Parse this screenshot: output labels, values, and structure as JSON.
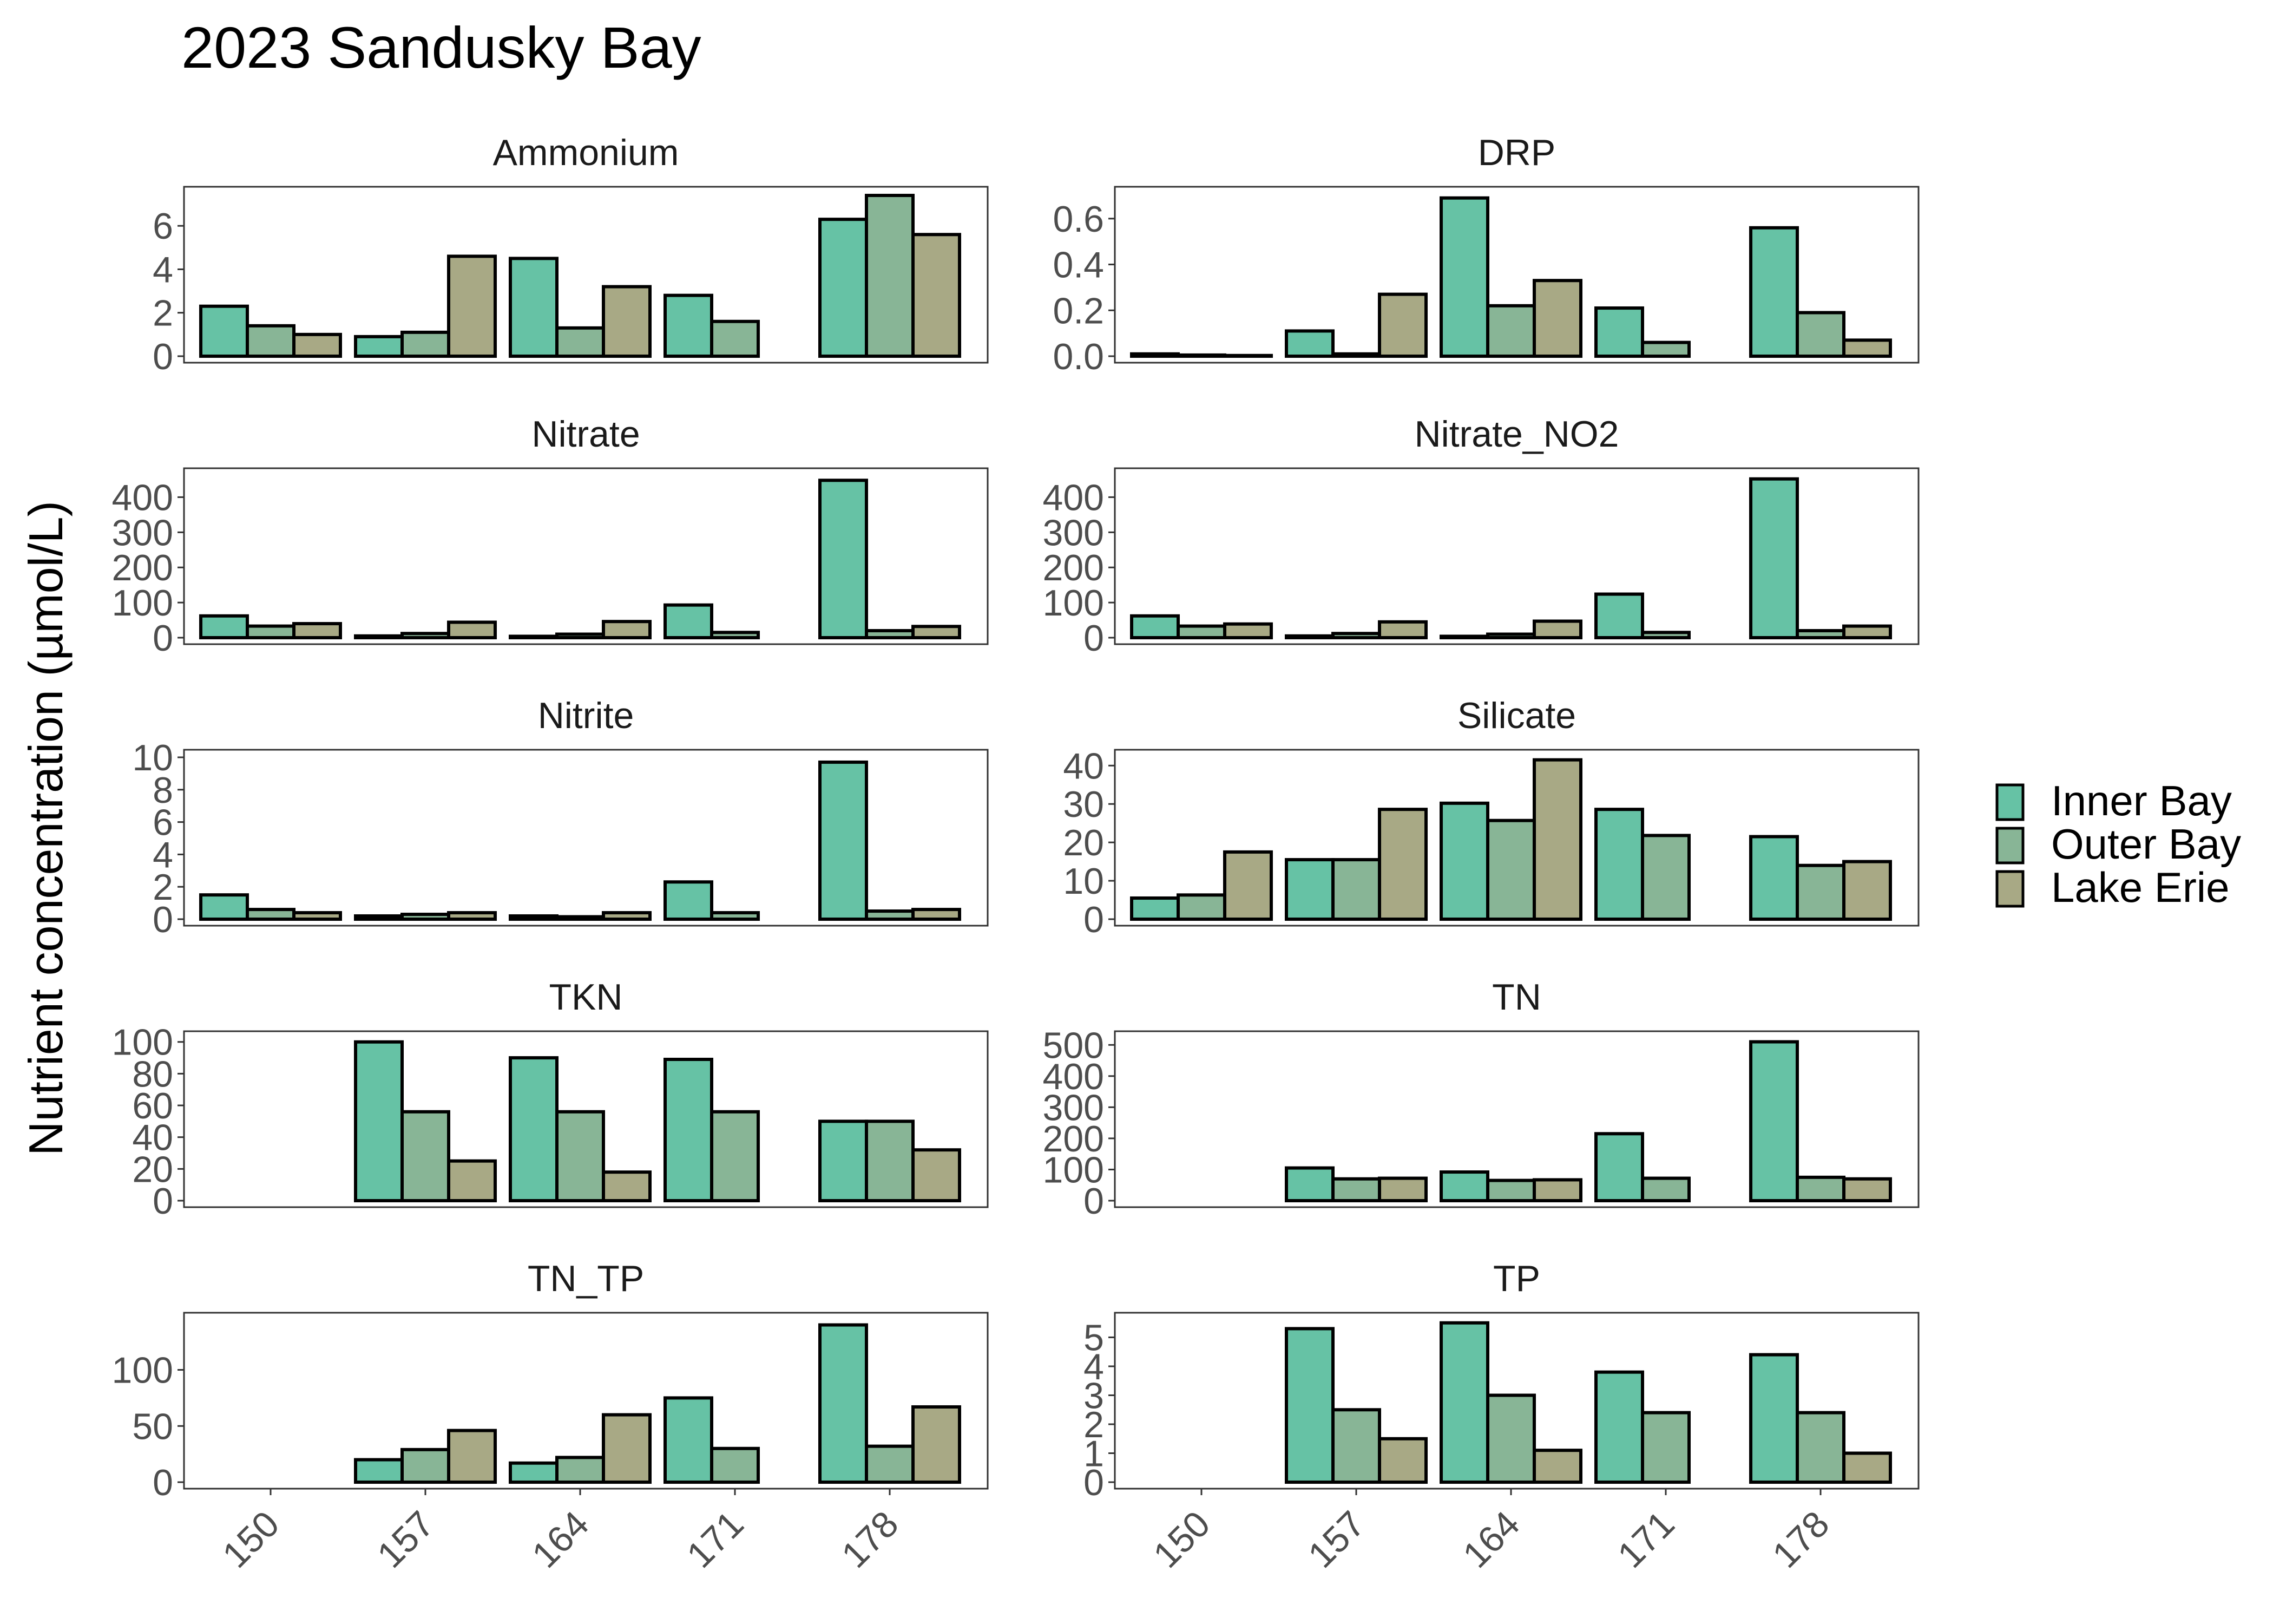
{
  "title": "2023 Sandusky Bay",
  "ylabel": "Nutrient concentration (µmol/L)",
  "legend": [
    {
      "label": "Inner Bay",
      "color": "#66c2a5"
    },
    {
      "label": "Outer Bay",
      "color": "#88b596"
    },
    {
      "label": "Lake Erie",
      "color": "#a8a985"
    }
  ],
  "chart_data": {
    "type": "bar",
    "layout": "faceted 5x2 grid, shared x axis",
    "x": [
      "150",
      "157",
      "164",
      "171",
      "178"
    ],
    "series_names": [
      "Inner Bay",
      "Outer Bay",
      "Lake Erie"
    ],
    "legend_position": "right",
    "grid": false,
    "panels": [
      {
        "title": "Ammonium",
        "ylim": [
          0,
          7.6
        ],
        "yticks": [
          "0",
          "2",
          "4",
          "6"
        ],
        "values": [
          [
            2.3,
            1.4,
            1.0
          ],
          [
            0.9,
            1.1,
            4.6
          ],
          [
            4.5,
            1.3,
            3.2
          ],
          [
            2.8,
            1.6,
            null
          ],
          [
            6.3,
            7.4,
            5.6
          ]
        ]
      },
      {
        "title": "DRP",
        "ylim": [
          0,
          0.72
        ],
        "yticks": [
          "0.0",
          "0.2",
          "0.4",
          "0.6"
        ],
        "values": [
          [
            0.01,
            0.005,
            0.003
          ],
          [
            0.11,
            0.01,
            0.27
          ],
          [
            0.69,
            0.22,
            0.33
          ],
          [
            0.21,
            0.06,
            null
          ],
          [
            0.56,
            0.19,
            0.07
          ]
        ]
      },
      {
        "title": "Nitrate",
        "ylim": [
          0,
          470
        ],
        "yticks": [
          "0",
          "100",
          "200",
          "300",
          "400"
        ],
        "values": [
          [
            62,
            33,
            40
          ],
          [
            5,
            12,
            44
          ],
          [
            4,
            10,
            46
          ],
          [
            93,
            15,
            null
          ],
          [
            448,
            20,
            32
          ]
        ]
      },
      {
        "title": "Nitrate_NO2",
        "ylim": [
          0,
          470
        ],
        "yticks": [
          "0",
          "100",
          "200",
          "300",
          "400"
        ],
        "values": [
          [
            62,
            33,
            39
          ],
          [
            5,
            12,
            45
          ],
          [
            4,
            10,
            47
          ],
          [
            124,
            15,
            null
          ],
          [
            452,
            20,
            33
          ]
        ]
      },
      {
        "title": "Nitrite",
        "ylim": [
          0,
          10.2
        ],
        "yticks": [
          "0",
          "2",
          "4",
          "6",
          "8",
          "10"
        ],
        "values": [
          [
            1.5,
            0.6,
            0.4
          ],
          [
            0.2,
            0.3,
            0.4
          ],
          [
            0.2,
            0.15,
            0.4
          ],
          [
            2.3,
            0.4,
            null
          ],
          [
            9.7,
            0.5,
            0.6
          ]
        ]
      },
      {
        "title": "Silicate",
        "ylim": [
          0,
          43
        ],
        "yticks": [
          "0",
          "10",
          "20",
          "30",
          "40"
        ],
        "values": [
          [
            5.5,
            6.3,
            17.5
          ],
          [
            15.5,
            15.5,
            28.6
          ],
          [
            30.2,
            25.7,
            41.5
          ],
          [
            28.6,
            21.8,
            null
          ],
          [
            21.5,
            14.0,
            15.0
          ]
        ]
      },
      {
        "title": "TKN",
        "ylim": [
          0,
          104
        ],
        "yticks": [
          "0",
          "20",
          "40",
          "60",
          "80",
          "100"
        ],
        "values": [
          [
            null,
            null,
            null
          ],
          [
            100,
            56,
            25
          ],
          [
            90,
            56,
            18
          ],
          [
            89,
            56,
            null
          ],
          [
            50,
            50,
            32
          ]
        ]
      },
      {
        "title": "TN",
        "ylim": [
          0,
          530
        ],
        "yticks": [
          "0",
          "100",
          "200",
          "300",
          "400",
          "500"
        ],
        "values": [
          [
            null,
            null,
            null
          ],
          [
            105,
            70,
            72
          ],
          [
            92,
            65,
            67
          ],
          [
            215,
            72,
            null
          ],
          [
            510,
            75,
            70
          ]
        ]
      },
      {
        "title": "TN_TP",
        "ylim": [
          0,
          147
        ],
        "yticks": [
          "0",
          "50",
          "100"
        ],
        "values": [
          [
            null,
            null,
            null
          ],
          [
            20,
            29,
            46
          ],
          [
            17,
            22,
            60
          ],
          [
            75,
            30,
            null
          ],
          [
            140,
            32,
            67
          ]
        ]
      },
      {
        "title": "TP",
        "ylim": [
          0,
          5.7
        ],
        "yticks": [
          "0",
          "1",
          "2",
          "3",
          "4",
          "5"
        ],
        "values": [
          [
            null,
            null,
            null
          ],
          [
            5.3,
            2.5,
            1.5
          ],
          [
            5.5,
            3.0,
            1.1
          ],
          [
            3.8,
            2.4,
            null
          ],
          [
            4.4,
            2.4,
            1.0
          ]
        ]
      }
    ]
  }
}
